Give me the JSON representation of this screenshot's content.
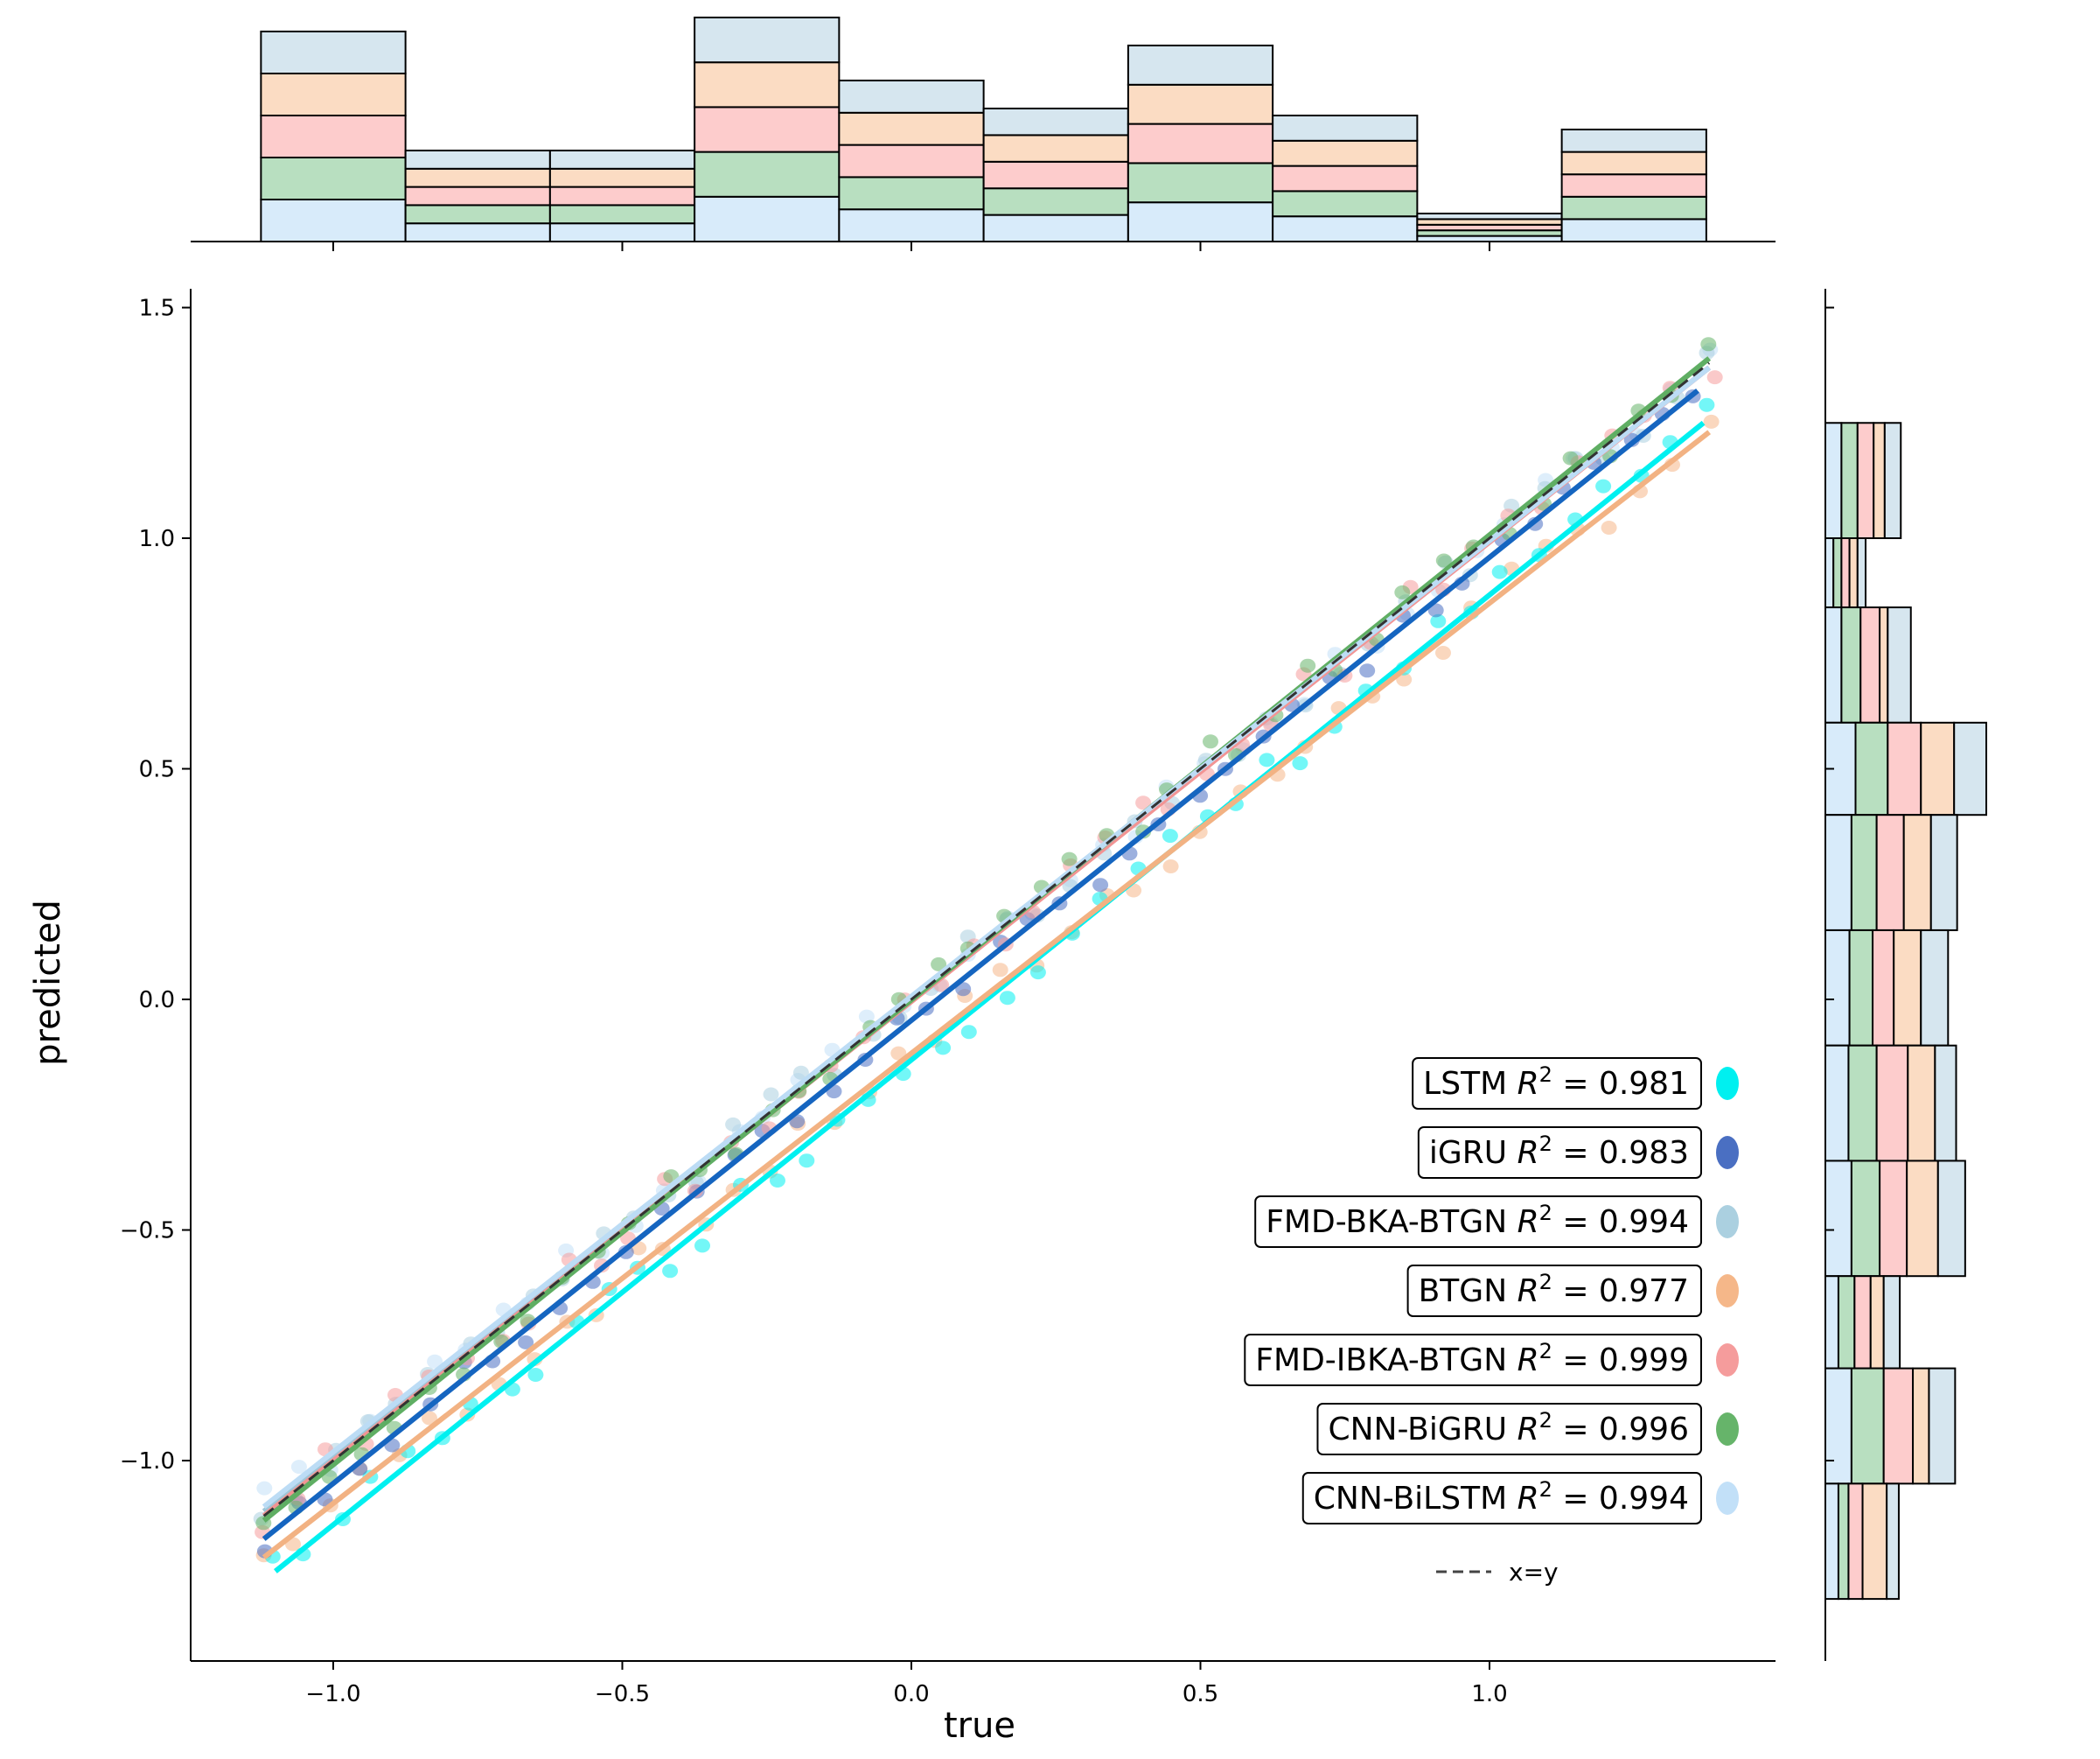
{
  "chart_data": {
    "type": "scatter",
    "title": "",
    "xlabel": "true",
    "ylabel": "predicted",
    "xlim": [
      -1.25,
      1.5
    ],
    "ylim": [
      -1.43,
      1.55
    ],
    "xticks": [
      -1.0,
      -0.5,
      0.0,
      0.5,
      1.0
    ],
    "xtick_labels": [
      "−1.0",
      "−0.5",
      "0.0",
      "0.5",
      "1.0"
    ],
    "yticks": [
      -1.0,
      -0.5,
      0.0,
      0.5,
      1.0,
      1.5
    ],
    "ytick_labels": [
      "−1.0",
      "−0.5",
      "0.0",
      "0.5",
      "1.0",
      "1.5"
    ],
    "diagonal_label": "x=y",
    "series": [
      {
        "name": "LSTM",
        "r2_text": "0.981",
        "color": "#00f0f0",
        "marker_color": "#00f0f0",
        "fit": {
          "x": [
            -1.1,
            1.37
          ],
          "y": [
            -1.24,
            1.25
          ]
        },
        "offset": -0.13
      },
      {
        "name": "iGRU",
        "r2_text": "0.983",
        "color": "#1565c0",
        "marker_color": "#4a6fc2",
        "fit": {
          "x": [
            -1.12,
            1.36
          ],
          "y": [
            -1.17,
            1.32
          ]
        },
        "offset": -0.04
      },
      {
        "name": "FMD-BKA-BTGN",
        "r2_text": "0.994",
        "color": "#9ec6d8",
        "marker_color": "#abd0e0",
        "fit": {
          "x": [
            -1.12,
            1.38
          ],
          "y": [
            -1.11,
            1.37
          ]
        },
        "offset": 0.01
      },
      {
        "name": "BTGN",
        "r2_text": "0.977",
        "color": "#f2b283",
        "marker_color": "#f5b789",
        "fit": {
          "x": [
            -1.12,
            1.38
          ],
          "y": [
            -1.21,
            1.23
          ]
        },
        "offset": -0.12
      },
      {
        "name": "FMD-IBKA-BTGN",
        "r2_text": "0.999",
        "color": "#f29494",
        "marker_color": "#f59c9c",
        "fit": {
          "x": [
            -1.12,
            1.38
          ],
          "y": [
            -1.12,
            1.37
          ]
        },
        "offset": 0.0
      },
      {
        "name": "CNN-BiGRU",
        "r2_text": "0.996",
        "color": "#5fae63",
        "marker_color": "#66b46a",
        "fit": {
          "x": [
            -1.12,
            1.38
          ],
          "y": [
            -1.13,
            1.39
          ]
        },
        "offset": 0.03
      },
      {
        "name": "CNN-BiLSTM",
        "r2_text": "0.994",
        "color": "#bcdcf5",
        "marker_color": "#c2e0f8",
        "fit": {
          "x": [
            -1.12,
            1.38
          ],
          "y": [
            -1.1,
            1.37
          ]
        },
        "offset": 0.02
      }
    ],
    "top_histogram": {
      "bin_edges": [
        -1.125,
        -0.875,
        -0.625,
        -0.375,
        -0.125,
        0.125,
        0.375,
        0.625,
        0.875,
        1.125,
        1.375
      ],
      "stack_order": [
        "CNN-BiLSTM",
        "CNN-BiGRU",
        "FMD-IBKA-BTGN",
        "BTGN",
        "FMD-BKA-BTGN"
      ],
      "stack_colors": [
        "#d8ebfa",
        "#b8dfc0",
        "#fdcccc",
        "#fbdcc3",
        "#d6e6ef"
      ],
      "counts": [
        [
          3,
          3,
          3,
          3,
          3
        ],
        [
          1.3,
          1.3,
          1.3,
          1.3,
          1.3
        ],
        [
          1.3,
          1.3,
          1.3,
          1.3,
          1.3
        ],
        [
          3.2,
          3.2,
          3.2,
          3.2,
          3.2
        ],
        [
          2.3,
          2.3,
          2.3,
          2.3,
          2.3
        ],
        [
          1.9,
          1.9,
          1.9,
          1.9,
          1.9
        ],
        [
          2.8,
          2.8,
          2.8,
          2.8,
          2.8
        ],
        [
          1.8,
          1.8,
          1.8,
          1.8,
          1.8
        ],
        [
          0.4,
          0.4,
          0.4,
          0.4,
          0.4
        ],
        [
          1.6,
          1.6,
          1.6,
          1.6,
          1.6
        ]
      ]
    },
    "right_histogram": {
      "bin_edges": [
        1.25,
        1.0,
        0.85,
        0.6,
        0.4,
        0.15,
        -0.1,
        -0.35,
        -0.6,
        -0.8,
        -1.05,
        -1.3
      ],
      "stack_order": [
        "CNN-BiLSTM",
        "CNN-BiGRU",
        "FMD-IBKA-BTGN",
        "BTGN",
        "FMD-BKA-BTGN"
      ],
      "stack_colors": [
        "#d8ebfa",
        "#b8dfc0",
        "#fdcccc",
        "#fbdcc3",
        "#d6e6ef"
      ],
      "counts": [
        [
          1.6,
          1.6,
          1.6,
          1.1,
          1.6
        ],
        [
          0.8,
          0.8,
          0.8,
          0.8,
          0.8
        ],
        [
          1.6,
          1.9,
          1.9,
          0.8,
          2.3
        ],
        [
          3.0,
          3.2,
          3.3,
          3.3,
          3.2
        ],
        [
          2.6,
          2.5,
          2.7,
          2.7,
          2.6
        ],
        [
          2.4,
          2.3,
          2.1,
          2.7,
          2.7
        ],
        [
          2.3,
          2.8,
          3.1,
          2.7,
          2.1
        ],
        [
          2.6,
          2.8,
          2.7,
          3.1,
          2.7
        ],
        [
          1.3,
          1.6,
          1.6,
          1.3,
          1.6
        ],
        [
          2.6,
          3.2,
          2.9,
          1.6,
          2.6
        ],
        [
          1.3,
          1.0,
          1.4,
          2.4,
          1.2
        ]
      ]
    }
  }
}
